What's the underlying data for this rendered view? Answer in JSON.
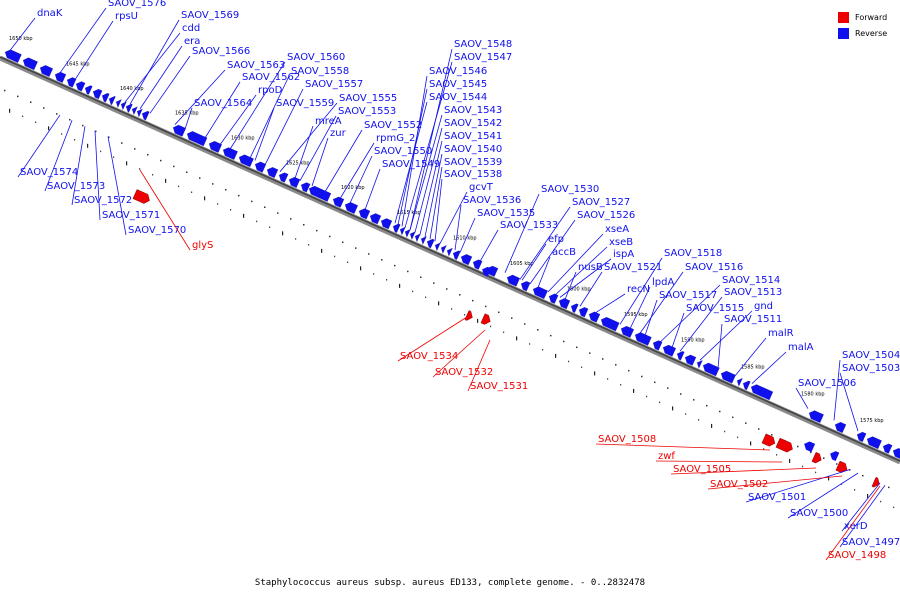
{
  "colors": {
    "forward": "#ee0000",
    "reverse": "#1010ee",
    "backbone": "#555555"
  },
  "legend": {
    "forward": "Forward",
    "reverse": "Reverse"
  },
  "caption": "Staphylococcus aureus subsp. aureus ED133, complete genome. - 0..2832478",
  "ruler_labels": [
    "1650 kbp",
    "1645 kbp",
    "1640 kbp",
    "1635 kbp",
    "1630 kbp",
    "1625 kbp",
    "1620 kbp",
    "1615 kbp",
    "1610 kbp",
    "1605 kbp",
    "1600 kbp",
    "1595 kbp",
    "1590 kbp",
    "1585 kbp",
    "1580 kbp",
    "1575 kbp"
  ],
  "genes": {
    "forward": [
      "glyS",
      "SAOV_1534",
      "SAOV_1532",
      "SAOV_1531",
      "SAOV_1508",
      "zwf",
      "SAOV_1505",
      "SAOV_1502",
      "SAOV_1498"
    ],
    "reverse_top": [
      "dnaK",
      "SAOV_1576",
      "rpsU",
      "SAOV_1569",
      "cdd",
      "era",
      "SAOV_1566",
      "SAOV_1563",
      "SAOV_1562",
      "rpoD",
      "SAOV_1564",
      "SAOV_1560",
      "SAOV_1558",
      "SAOV_1557",
      "SAOV_1559",
      "SAOV_1555",
      "mreA",
      "SAOV_1553",
      "zur",
      "SAOV_1552",
      "rpmG_2",
      "SAOV_1550",
      "SAOV_1549",
      "SAOV_1548",
      "SAOV_1547",
      "SAOV_1546",
      "SAOV_1545",
      "SAOV_1544",
      "SAOV_1543",
      "SAOV_1542",
      "SAOV_1541",
      "SAOV_1540",
      "SAOV_1539",
      "SAOV_1538",
      "gcvT",
      "SAOV_1536",
      "SAOV_1535",
      "SAOV_1533",
      "SAOV_1530",
      "SAOV_1527",
      "SAOV_1526",
      "efp",
      "xseA",
      "xseB",
      "accB",
      "ispA",
      "nusB",
      "SAOV_1521",
      "recN",
      "SAOV_1518",
      "lpdA",
      "SAOV_1516",
      "SAOV_1517",
      "SAOV_1514",
      "SAOV_1515",
      "SAOV_1513",
      "gnd",
      "SAOV_1511",
      "malR",
      "malA",
      "SAOV_1504",
      "SAOV_1506",
      "SAOV_1503"
    ],
    "reverse_bottom": [
      "SAOV_1574",
      "SAOV_1573",
      "SAOV_1572",
      "SAOV_1571",
      "SAOV_1570",
      "SAOV_1501",
      "SAOV_1500",
      "xerD",
      "SAOV_1497"
    ]
  }
}
